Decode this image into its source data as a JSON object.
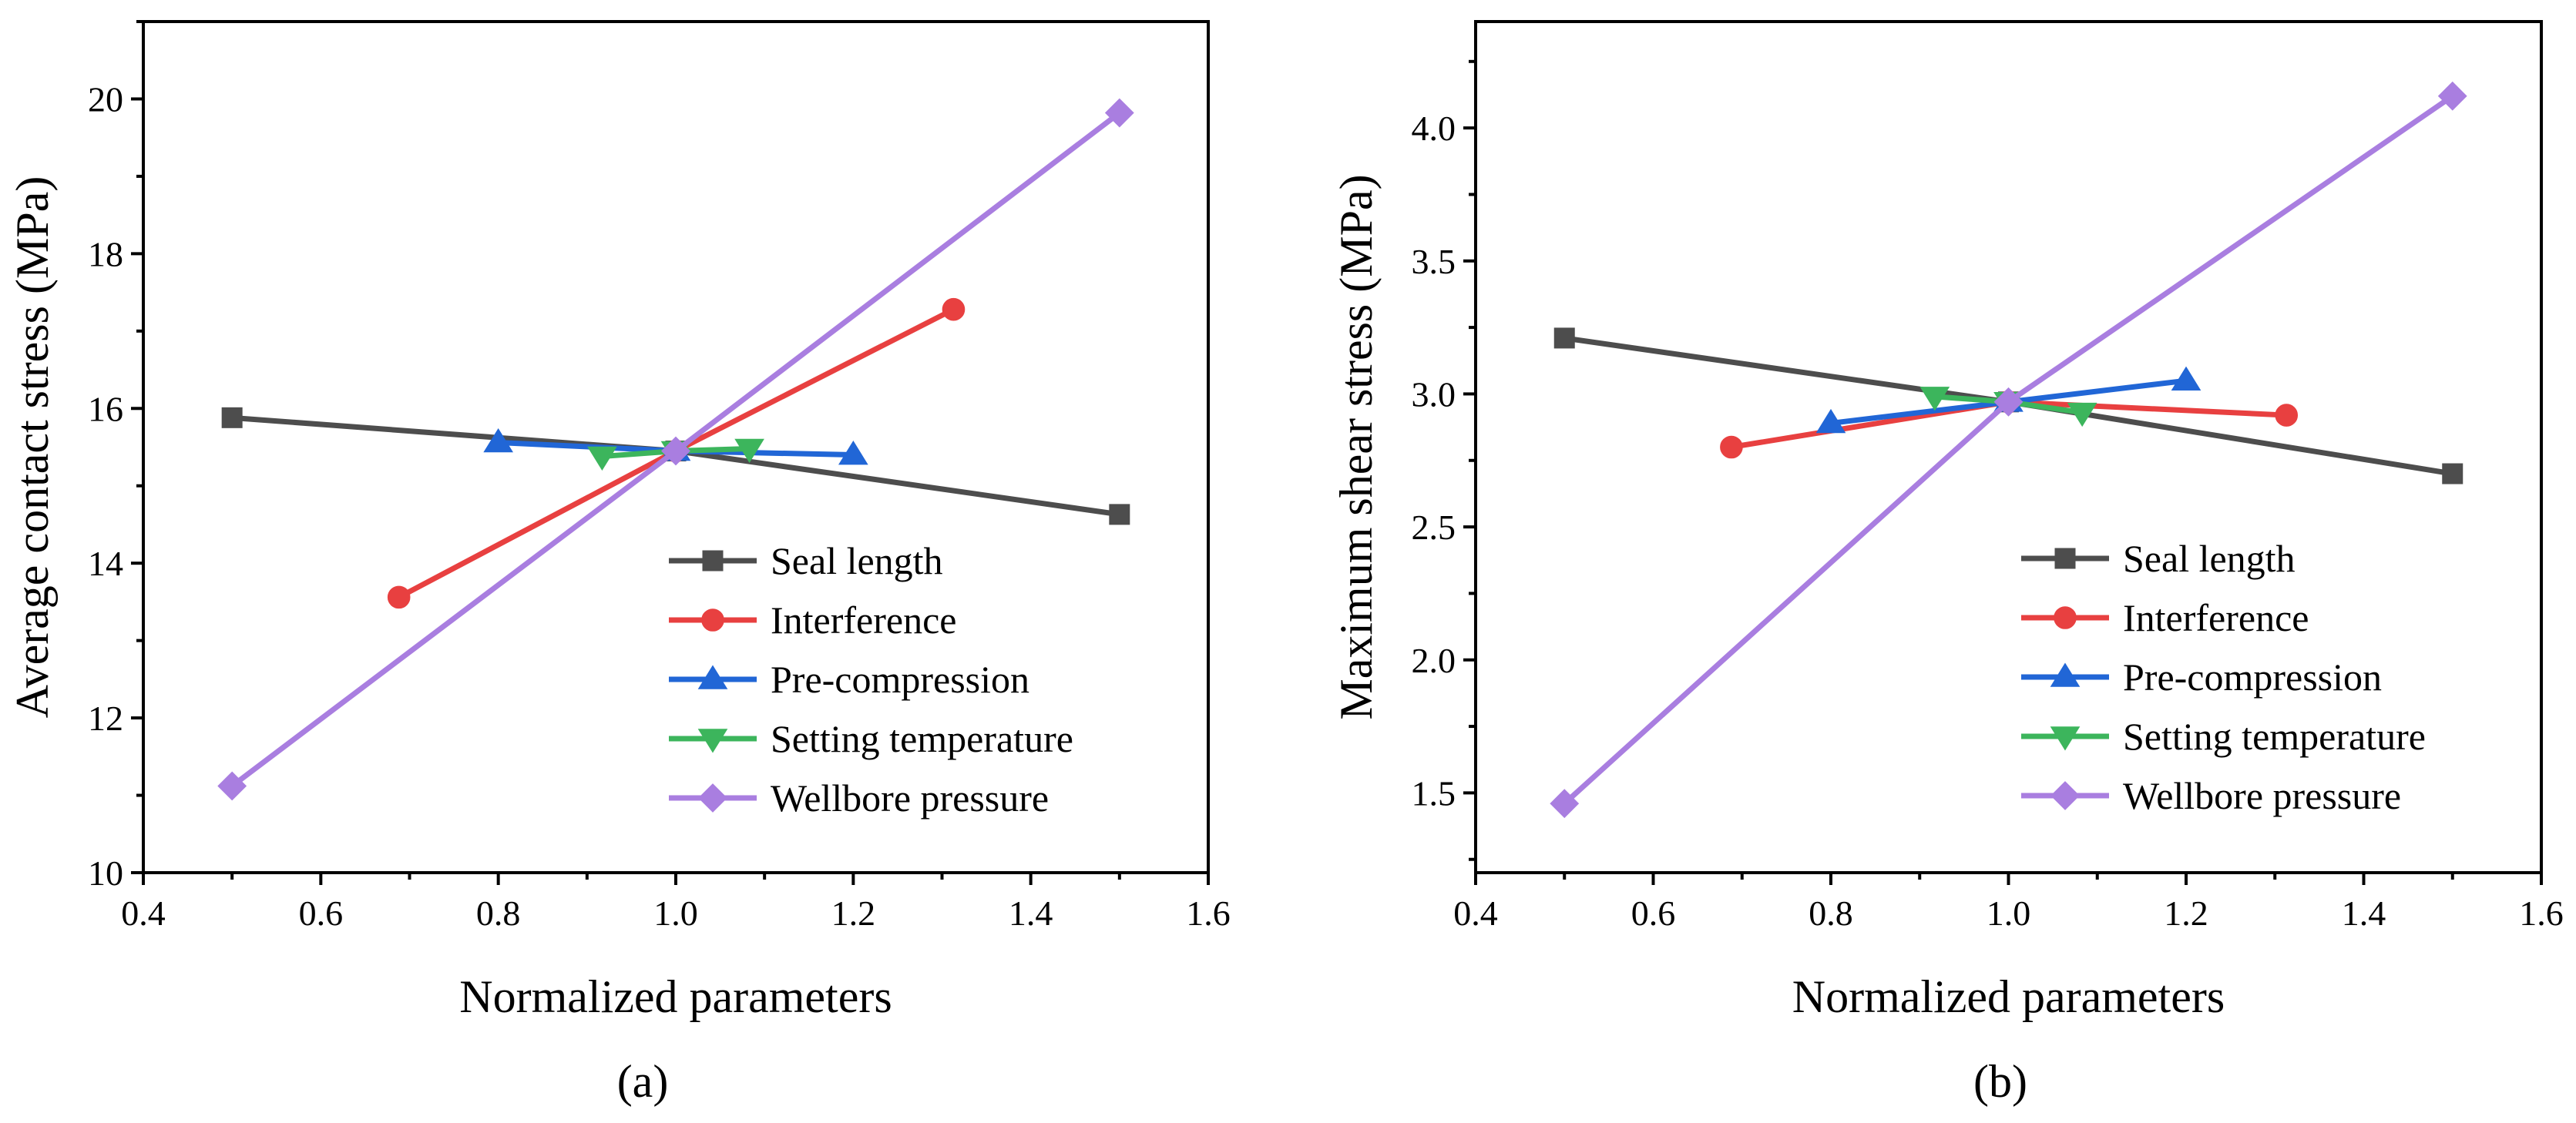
{
  "chart_data": [
    {
      "type": "line",
      "panel_label": "(a)",
      "xlabel": "Normalized parameters",
      "ylabel": "Average contact stress (MPa)",
      "xlim": [
        0.4,
        1.6
      ],
      "ylim": [
        10,
        21
      ],
      "xticks": [
        0.4,
        0.6,
        0.8,
        1.0,
        1.2,
        1.4,
        1.6
      ],
      "xtick_labels": [
        "0.4",
        "0.6",
        "0.8",
        "1.0",
        "1.2",
        "1.4",
        "1.6"
      ],
      "yticks": [
        10,
        12,
        14,
        16,
        18,
        20
      ],
      "ytick_labels": [
        "10",
        "12",
        "14",
        "16",
        "18",
        "20"
      ],
      "yminor": [
        11,
        13,
        15,
        17,
        19,
        21
      ],
      "grid": false,
      "legend_position": "lower-right",
      "series": [
        {
          "name": "Seal length",
          "color": "#4d4d4d",
          "marker": "square",
          "x": [
            0.5,
            1.0,
            1.5
          ],
          "y": [
            15.88,
            15.45,
            14.63
          ]
        },
        {
          "name": "Interference",
          "color": "#e84040",
          "marker": "circle",
          "x": [
            0.688,
            1.0,
            1.313
          ],
          "y": [
            13.56,
            15.45,
            17.28
          ]
        },
        {
          "name": "Pre-compression",
          "color": "#2166d6",
          "marker": "triangle-up",
          "x": [
            0.8,
            1.0,
            1.2
          ],
          "y": [
            15.56,
            15.45,
            15.4
          ]
        },
        {
          "name": "Setting temperature",
          "color": "#3cb55c",
          "marker": "triangle-down",
          "x": [
            0.917,
            1.0,
            1.083
          ],
          "y": [
            15.38,
            15.45,
            15.48
          ]
        },
        {
          "name": "Wellbore pressure",
          "color": "#a97ee0",
          "marker": "diamond",
          "x": [
            0.5,
            1.0,
            1.5
          ],
          "y": [
            11.12,
            15.45,
            19.82
          ]
        }
      ]
    },
    {
      "type": "line",
      "panel_label": "(b)",
      "xlabel": "Normalized parameters",
      "ylabel": "Maximum shear stress (MPa)",
      "xlim": [
        0.4,
        1.6
      ],
      "ylim": [
        1.2,
        4.4
      ],
      "xticks": [
        0.4,
        0.6,
        0.8,
        1.0,
        1.2,
        1.4,
        1.6
      ],
      "xtick_labels": [
        "0.4",
        "0.6",
        "0.8",
        "1.0",
        "1.2",
        "1.4",
        "1.6"
      ],
      "yticks": [
        1.5,
        2.0,
        2.5,
        3.0,
        3.5,
        4.0
      ],
      "ytick_labels": [
        "1.5",
        "2.0",
        "2.5",
        "3.0",
        "3.5",
        "4.0"
      ],
      "yminor": [
        1.25,
        1.75,
        2.25,
        2.75,
        3.25,
        3.75,
        4.25
      ],
      "grid": false,
      "legend_position": "lower-right",
      "series": [
        {
          "name": "Seal length",
          "color": "#4d4d4d",
          "marker": "square",
          "x": [
            0.5,
            1.0,
            1.5
          ],
          "y": [
            3.21,
            2.97,
            2.7
          ]
        },
        {
          "name": "Interference",
          "color": "#e84040",
          "marker": "circle",
          "x": [
            0.688,
            1.0,
            1.313
          ],
          "y": [
            2.8,
            2.97,
            2.92
          ]
        },
        {
          "name": "Pre-compression",
          "color": "#2166d6",
          "marker": "triangle-up",
          "x": [
            0.8,
            1.0,
            1.2
          ],
          "y": [
            2.89,
            2.97,
            3.05
          ]
        },
        {
          "name": "Setting temperature",
          "color": "#3cb55c",
          "marker": "triangle-down",
          "x": [
            0.917,
            1.0,
            1.083
          ],
          "y": [
            2.99,
            2.97,
            2.93
          ]
        },
        {
          "name": "Wellbore pressure",
          "color": "#a97ee0",
          "marker": "diamond",
          "x": [
            0.5,
            1.0,
            1.5
          ],
          "y": [
            1.46,
            2.97,
            4.12
          ]
        }
      ]
    }
  ]
}
